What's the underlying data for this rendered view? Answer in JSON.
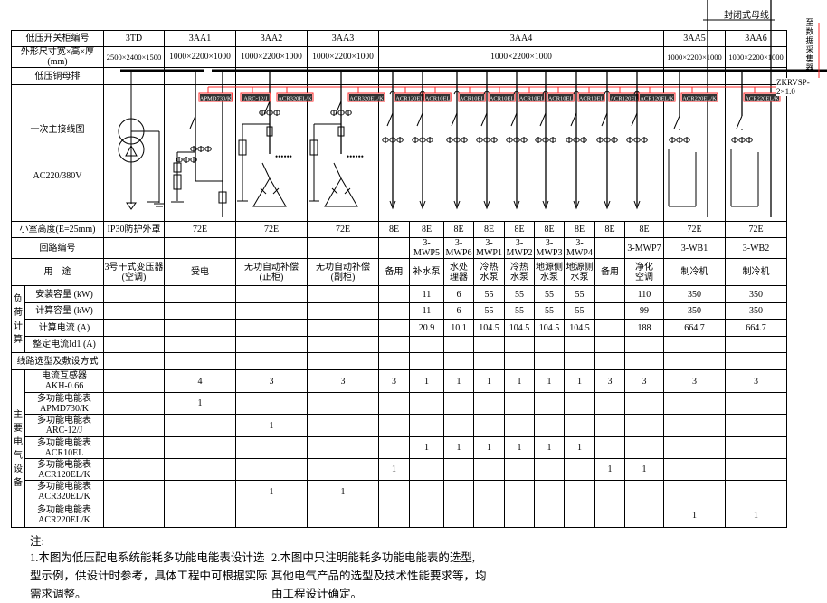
{
  "header": {
    "busway_label": "封闭式母线",
    "collector_label": "至数据采集器",
    "cable_label": "ZKRVSP-2×1.0"
  },
  "row_labels": {
    "cabinet_no": "低压开关柜编号",
    "dimensions": "外形尺寸宽×高×厚(mm)",
    "busbar": "低压铜母排",
    "diagram": "一次主接线图",
    "voltage": "AC220/380V",
    "compartment": "小室高度(E=25mm)",
    "circuit": "回路编号",
    "usage": "用　途",
    "load_group": "负\n荷\n计\n算",
    "installed": "安装容量 (kW)",
    "calc_kw": "计算容量 (kW)",
    "calc_current": "计算电流 (A)",
    "setting_current": "整定电流Id1 (A)",
    "wiring": "线路选型及敷设方式",
    "equip_group": "主\n要\n电\n气\n设\n备"
  },
  "cabinets": [
    {
      "id": "3TD",
      "dims": "2500×2400×1500"
    },
    {
      "id": "3AA1",
      "dims": "1000×2200×1000"
    },
    {
      "id": "3AA2",
      "dims": "1000×2200×1000"
    },
    {
      "id": "3AA3",
      "dims": "1000×2200×1000"
    },
    {
      "id": "3AA4",
      "dims": "1000×2200×1000"
    },
    {
      "id": "3AA5",
      "dims": "1000×2200×1000"
    },
    {
      "id": "3AA6",
      "dims": "1000×2200×1000"
    }
  ],
  "rows": {
    "compartment": [
      "IP30防护外罩",
      "72E",
      "72E",
      "72E",
      "8E",
      "8E",
      "8E",
      "8E",
      "8E",
      "8E",
      "8E",
      "8E",
      "8E",
      "72E",
      "72E"
    ],
    "circuit": [
      "",
      "",
      "",
      "",
      "",
      "3-MWP5",
      "3-MWP6",
      "3-MWP1",
      "3-MWP2",
      "3-MWP3",
      "3-MWP4",
      "",
      "3-MWP7",
      "3-WB1",
      "3-WB2"
    ],
    "usage": [
      "3号干式变压器\n(空调)",
      "受电",
      "无功自动补偿\n(正柜)",
      "无功自动补偿\n(副柜)",
      "备用",
      "补水泵",
      "水处\n理器",
      "冷热\n水泵",
      "冷热\n水泵",
      "地源侧\n水泵",
      "地源侧\n水泵",
      "备用",
      "净化\n空调",
      "制冷机",
      "制冷机"
    ],
    "installed": [
      "",
      "",
      "",
      "",
      "",
      "11",
      "6",
      "55",
      "55",
      "55",
      "55",
      "",
      "110",
      "350",
      "350"
    ],
    "calc_kw": [
      "",
      "",
      "",
      "",
      "",
      "11",
      "6",
      "55",
      "55",
      "55",
      "55",
      "",
      "99",
      "350",
      "350"
    ],
    "calc_current": [
      "",
      "",
      "",
      "",
      "",
      "20.9",
      "10.1",
      "104.5",
      "104.5",
      "104.5",
      "104.5",
      "",
      "188",
      "664.7",
      "664.7"
    ],
    "setting_current": [
      "",
      "",
      "",
      "",
      "",
      "",
      "",
      "",
      "",
      "",
      "",
      "",
      "",
      "",
      ""
    ],
    "wiring": [
      "",
      "",
      "",
      "",
      "",
      "",
      "",
      "",
      "",
      "",
      "",
      "",
      "",
      "",
      ""
    ]
  },
  "equipment": [
    {
      "name": "电流互感器\nAKH-0.66",
      "values": [
        "",
        "4",
        "3",
        "3",
        "3",
        "1",
        "1",
        "1",
        "1",
        "1",
        "1",
        "3",
        "3",
        "3",
        "3"
      ]
    },
    {
      "name": "多功能电能表\nAPMD730/K",
      "values": [
        "",
        "1",
        "",
        "",
        "",
        "",
        "",
        "",
        "",
        "",
        "",
        "",
        "",
        "",
        ""
      ]
    },
    {
      "name": "多功能电能表\nARC-12/J",
      "values": [
        "",
        "",
        "1",
        "",
        "",
        "",
        "",
        "",
        "",
        "",
        "",
        "",
        "",
        "",
        ""
      ]
    },
    {
      "name": "多功能电能表\nACR10EL",
      "values": [
        "",
        "",
        "",
        "",
        "",
        "1",
        "1",
        "1",
        "1",
        "1",
        "1",
        "",
        "",
        "",
        ""
      ]
    },
    {
      "name": "多功能电能表\nACR120EL/K",
      "values": [
        "",
        "",
        "",
        "",
        "1",
        "",
        "",
        "",
        "",
        "",
        "",
        "1",
        "1",
        "",
        ""
      ]
    },
    {
      "name": "多功能电能表\nACR320EL/K",
      "values": [
        "",
        "",
        "1",
        "1",
        "",
        "",
        "",
        "",
        "",
        "",
        "",
        "",
        "",
        "",
        ""
      ]
    },
    {
      "name": "多功能电能表\nACR220EL/K",
      "values": [
        "",
        "",
        "",
        "",
        "",
        "",
        "",
        "",
        "",
        "",
        "",
        "",
        "",
        "1",
        "1"
      ]
    }
  ],
  "diagram": {
    "meter_labels": {
      "3AA1": [
        "APMD730/K"
      ],
      "3AA2": [
        "ARC-12/J",
        "ACR320EL/K"
      ],
      "3AA3": [
        "ACR320EL/K"
      ],
      "3AA4": [
        "ACR120EL/K",
        "ACR10EL",
        "ACR10EL",
        "ACR10EL",
        "ACR10EL",
        "ACR10EL",
        "ACR10EL",
        "ACR120EL/K",
        "ACR120EL/K"
      ],
      "3AA5": [
        "ACR220EL/K"
      ],
      "3AA6": [
        "ACR220EL/K"
      ]
    },
    "signal_color": "#ff2a2a"
  },
  "notes": {
    "title": "注:",
    "note1": [
      "1.本图为低压配电系统能耗多功能电能表设计选",
      "型示例，供设计时参考，具体工程中可根据实际",
      "需求调整。"
    ],
    "note2": [
      "2.本图中只注明能耗多功能电能表的选型,",
      "其他电气产品的选型及技术性能要求等，均",
      "由工程设计确定。"
    ]
  }
}
